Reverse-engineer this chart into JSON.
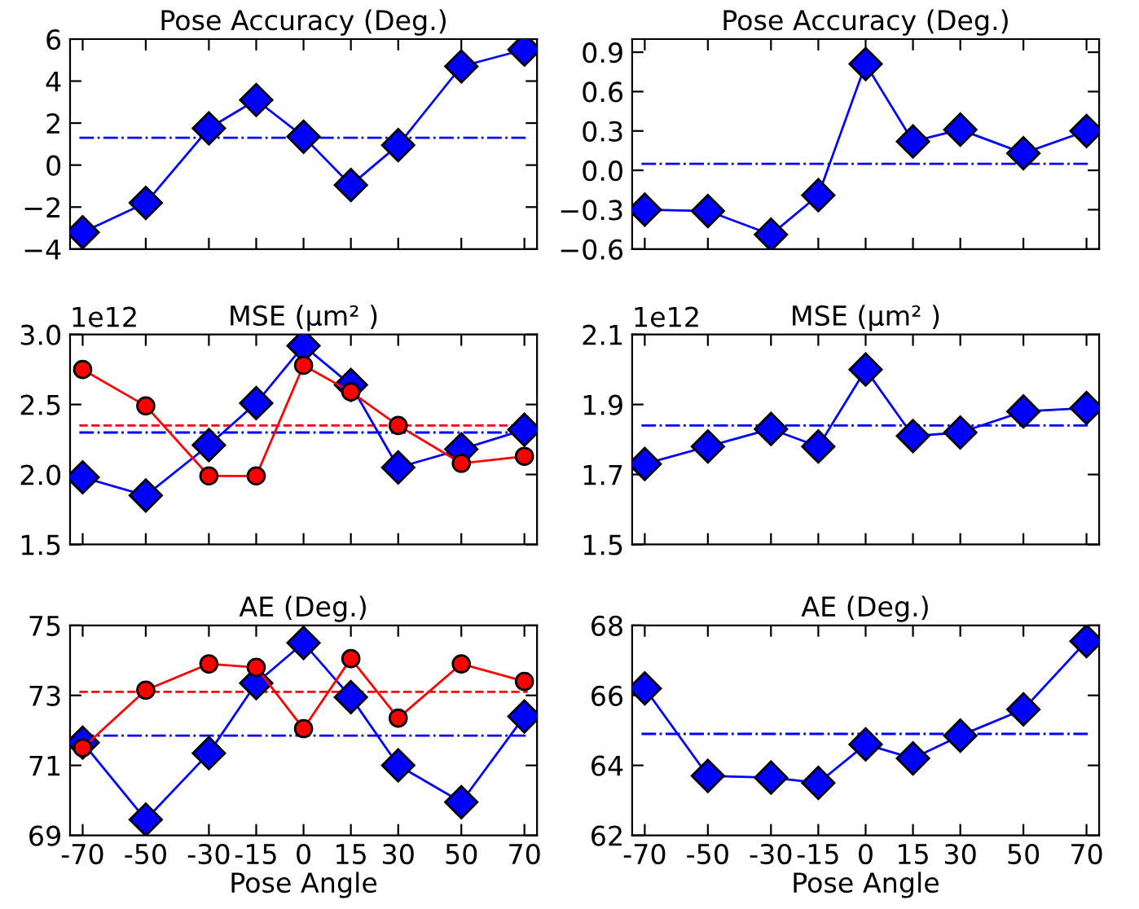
{
  "chart_data": [
    {
      "type": "line",
      "title": "Pose Accuracy (Deg.)",
      "x": [
        -70,
        -50,
        -30,
        -15,
        0,
        15,
        30,
        50,
        70
      ],
      "xlim": [
        -74,
        74
      ],
      "xticks": [
        -70,
        -50,
        -30,
        -15,
        0,
        15,
        30,
        50,
        70
      ],
      "tick_labels": "y",
      "ylim": [
        -4,
        6
      ],
      "yticks": [
        {
          "value": -4,
          "label": "−4"
        },
        {
          "value": -2,
          "label": "−2"
        },
        0,
        2,
        4,
        6
      ],
      "series": [
        {
          "color": "#0000ff",
          "marker": "diamond",
          "values": [
            -3.2,
            -1.8,
            1.75,
            3.1,
            1.35,
            -0.95,
            0.95,
            4.7,
            5.5
          ]
        }
      ],
      "ref_lines": [
        {
          "axis": "y",
          "value": 1.3,
          "color": "#0000ff",
          "line_style": "dashdot"
        }
      ]
    },
    {
      "type": "line",
      "title": "Pose Accuracy (Deg.)",
      "x": [
        -70,
        -50,
        -30,
        -15,
        0,
        15,
        30,
        50,
        70
      ],
      "xlim": [
        -74,
        74
      ],
      "xticks": [
        -70,
        -50,
        -30,
        -15,
        0,
        15,
        30,
        50,
        70
      ],
      "tick_labels": "y",
      "ylim": [
        -0.6,
        1.0
      ],
      "yticks": [
        {
          "value": -0.6,
          "label": "−0.6"
        },
        {
          "value": -0.3,
          "label": "−0.3"
        },
        {
          "value": 0,
          "label": "0.0"
        },
        0.3,
        0.6,
        0.9
      ],
      "series": [
        {
          "color": "#0000ff",
          "marker": "diamond",
          "values": [
            -0.3,
            -0.31,
            -0.49,
            -0.19,
            0.81,
            0.22,
            0.31,
            0.13,
            0.3
          ]
        }
      ],
      "ref_lines": [
        {
          "axis": "y",
          "value": 0.05,
          "color": "#0000ff",
          "line_style": "dashdot"
        }
      ]
    },
    {
      "type": "line",
      "title": "MSE (μm² )",
      "annotations": [
        "1e12"
      ],
      "x": [
        -70,
        -50,
        -30,
        -15,
        0,
        15,
        30,
        50,
        70
      ],
      "xlim": [
        -74,
        74
      ],
      "xticks": [
        -70,
        -50,
        -30,
        -15,
        0,
        15,
        30,
        50,
        70
      ],
      "tick_labels": "y",
      "ylim": [
        1.5,
        3.0
      ],
      "yticks": [
        1.5,
        {
          "value": 2,
          "label": "2.0"
        },
        2.5,
        {
          "value": 3,
          "label": "3.0"
        }
      ],
      "series": [
        {
          "color": "#0000ff",
          "marker": "diamond",
          "values": [
            1.98,
            1.85,
            2.21,
            2.51,
            2.92,
            2.64,
            2.05,
            2.18,
            2.32
          ]
        },
        {
          "color": "#ff0000",
          "marker": "circle",
          "values": [
            2.75,
            2.49,
            1.99,
            1.99,
            2.78,
            2.59,
            2.35,
            2.08,
            2.13
          ]
        }
      ],
      "ref_lines": [
        {
          "axis": "y",
          "value": 2.35,
          "color": "#ff0000",
          "line_style": "dashed"
        },
        {
          "axis": "y",
          "value": 2.3,
          "color": "#0000ff",
          "line_style": "dashdot"
        }
      ]
    },
    {
      "type": "line",
      "title": "MSE (μm² )",
      "annotations": [
        "1e12"
      ],
      "x": [
        -70,
        -50,
        -30,
        -15,
        0,
        15,
        30,
        50,
        70
      ],
      "xlim": [
        -74,
        74
      ],
      "xticks": [
        -70,
        -50,
        -30,
        -15,
        0,
        15,
        30,
        50,
        70
      ],
      "tick_labels": "y",
      "ylim": [
        1.5,
        2.1
      ],
      "yticks": [
        1.5,
        1.7,
        1.9,
        2.1
      ],
      "series": [
        {
          "color": "#0000ff",
          "marker": "diamond",
          "values": [
            1.73,
            1.78,
            1.83,
            1.78,
            2.0,
            1.81,
            1.82,
            1.88,
            1.89
          ]
        }
      ],
      "ref_lines": [
        {
          "axis": "y",
          "value": 1.84,
          "color": "#0000ff",
          "line_style": "dashdot"
        }
      ]
    },
    {
      "type": "line",
      "title": "AE (Deg.)",
      "xlabel": "Pose Angle",
      "x": [
        -70,
        -50,
        -30,
        -15,
        0,
        15,
        30,
        50,
        70
      ],
      "xlim": [
        -74,
        74
      ],
      "xticks": [
        -70,
        -50,
        -30,
        -15,
        0,
        15,
        30,
        50,
        70
      ],
      "ylim": [
        69,
        75
      ],
      "yticks": [
        69,
        71,
        73,
        75
      ],
      "series": [
        {
          "color": "#0000ff",
          "marker": "diamond",
          "values": [
            71.65,
            69.45,
            71.35,
            73.35,
            74.5,
            72.95,
            71.0,
            69.95,
            72.4
          ]
        },
        {
          "color": "#ff0000",
          "marker": "circle",
          "values": [
            71.5,
            73.15,
            73.9,
            73.8,
            72.05,
            74.05,
            72.35,
            73.9,
            73.4
          ]
        }
      ],
      "ref_lines": [
        {
          "axis": "y",
          "value": 73.1,
          "color": "#ff0000",
          "line_style": "dashed"
        },
        {
          "axis": "y",
          "value": 71.85,
          "color": "#0000ff",
          "line_style": "dashdot"
        }
      ]
    },
    {
      "type": "line",
      "title": "AE (Deg.)",
      "xlabel": "Pose Angle",
      "x": [
        -70,
        -50,
        -30,
        -15,
        0,
        15,
        30,
        50,
        70
      ],
      "xlim": [
        -74,
        74
      ],
      "xticks": [
        -70,
        -50,
        -30,
        -15,
        0,
        15,
        30,
        50,
        70
      ],
      "ylim": [
        62,
        68
      ],
      "yticks": [
        62,
        64,
        66,
        68
      ],
      "series": [
        {
          "color": "#0000ff",
          "marker": "diamond",
          "values": [
            66.2,
            63.7,
            63.65,
            63.5,
            64.6,
            64.2,
            64.85,
            65.6,
            67.55
          ]
        }
      ],
      "ref_lines": [
        {
          "axis": "y",
          "value": 64.9,
          "color": "#0000ff",
          "line_style": "dashdot"
        }
      ]
    }
  ]
}
